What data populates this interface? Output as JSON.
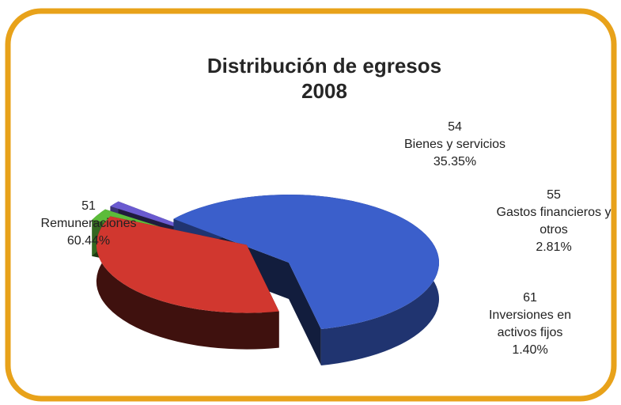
{
  "chart_data": {
    "type": "pie3d",
    "title": "Distribución de egresos",
    "subtitle": "2008",
    "codes": [
      "51",
      "54",
      "55",
      "61"
    ],
    "categories": [
      "Remuneraciones",
      "Bienes y servicios",
      "Gastos financieros y otros",
      "Inversiones en activos fijos"
    ],
    "values": [
      60.44,
      35.35,
      2.81,
      1.4
    ],
    "value_labels": [
      "60.44%",
      "35.35%",
      "2.81%",
      "1.40%"
    ],
    "colors": [
      "#3b5fcb",
      "#d1372f",
      "#5cbc3a",
      "#6a5ad0"
    ]
  }
}
